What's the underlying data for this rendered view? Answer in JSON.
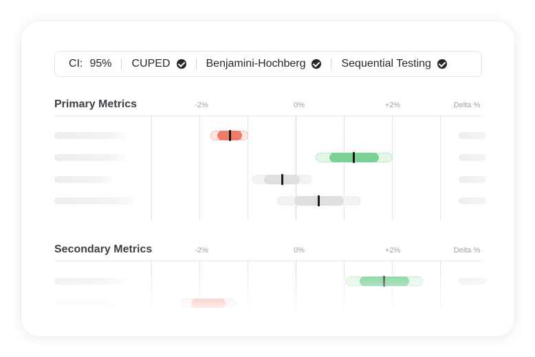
{
  "settings": {
    "ci_label": "CI:",
    "ci_value": "95%",
    "cuped": "CUPED",
    "bh": "Benjamini-Hochberg",
    "sequential": "Sequential Testing"
  },
  "axis": {
    "minus": "-2%",
    "zero": "0%",
    "plus": "+2%",
    "delta": "Delta %"
  },
  "primary": {
    "title": "Primary Metrics",
    "rows": [
      {
        "status": "negative",
        "color": "#ef7b6b"
      },
      {
        "status": "positive",
        "color": "#7bd196"
      },
      {
        "status": "neutral",
        "color": "#dfdfe2"
      },
      {
        "status": "neutral",
        "color": "#dfdfe2"
      }
    ]
  },
  "secondary": {
    "title": "Secondary Metrics",
    "rows": [
      {
        "status": "positive",
        "color": "#7bd196"
      },
      {
        "status": "negative",
        "color": "#ef7b6b"
      }
    ]
  },
  "icons": [
    "check-circle-icon"
  ]
}
